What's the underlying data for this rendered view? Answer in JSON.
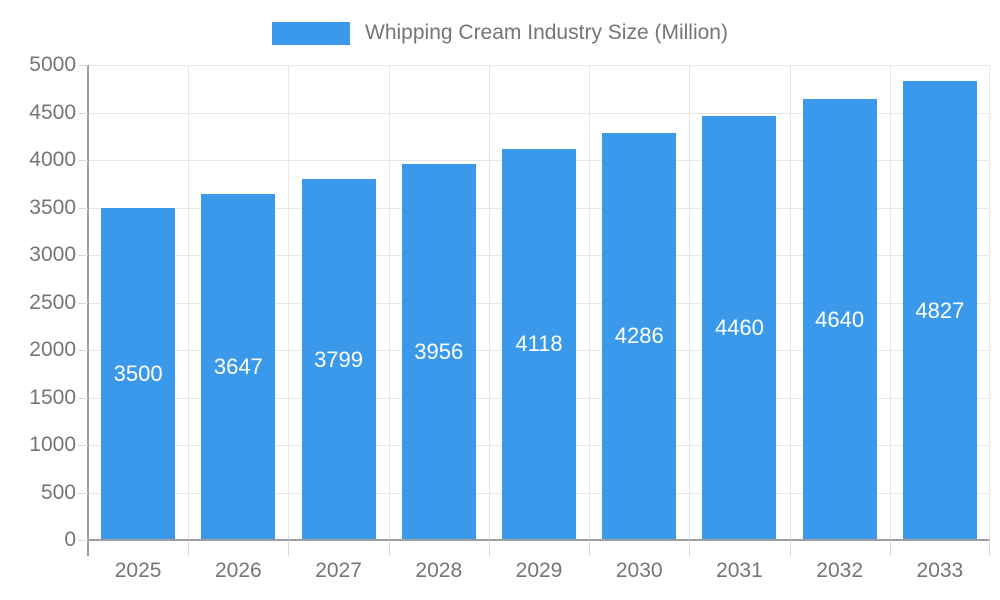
{
  "chart_data": {
    "type": "bar",
    "title": "Whipping Cream Industry Size (Million)",
    "categories": [
      "2025",
      "2026",
      "2027",
      "2028",
      "2029",
      "2030",
      "2031",
      "2032",
      "2033"
    ],
    "values": [
      3500,
      3647,
      3799,
      3956,
      4118,
      4286,
      4460,
      4640,
      4827
    ],
    "xlabel": "",
    "ylabel": "",
    "ylim": [
      0,
      5000
    ],
    "ytick_step": 500,
    "ytick_labels": [
      "0",
      "500",
      "1000",
      "1500",
      "2000",
      "2500",
      "3000",
      "3500",
      "4000",
      "4500",
      "5000"
    ],
    "grid": true,
    "legend_position": "top",
    "colors": {
      "bar": "#3b99ec",
      "bar_label": "#ffffff",
      "axis_text": "#757575",
      "gridline": "#e6e6e6",
      "tick": "#d9d9d9",
      "axis_line": "#9e9e9e",
      "background": "#ffffff"
    }
  }
}
